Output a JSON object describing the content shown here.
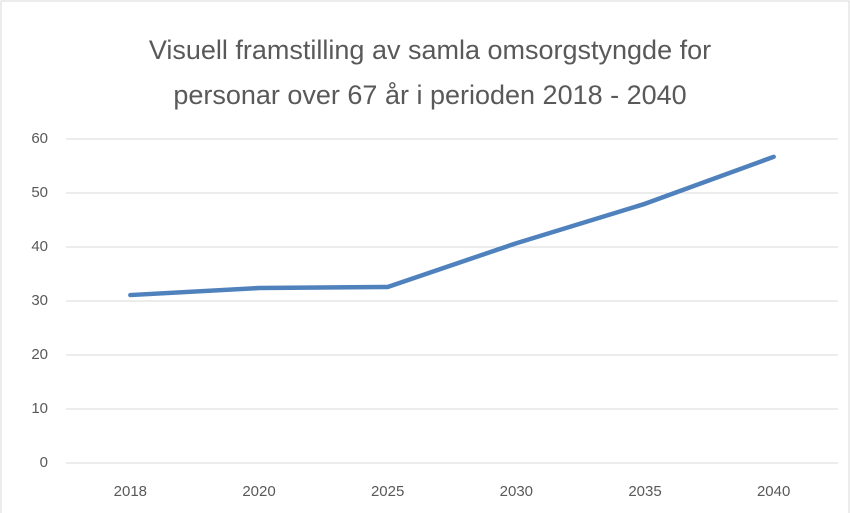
{
  "chart_data": {
    "type": "line",
    "title": "Visuell framstilling av samla omsorgstyngde for personar over 67 år i perioden 2018 - 2040",
    "categories": [
      "2018",
      "2020",
      "2025",
      "2030",
      "2035",
      "2040"
    ],
    "values": [
      31.1,
      32.4,
      32.6,
      40.7,
      48.0,
      56.7
    ],
    "color": "#4f81bd",
    "ylim": [
      0,
      60
    ],
    "yticks": [
      0,
      10,
      20,
      30,
      40,
      50,
      60
    ],
    "grid": true
  }
}
